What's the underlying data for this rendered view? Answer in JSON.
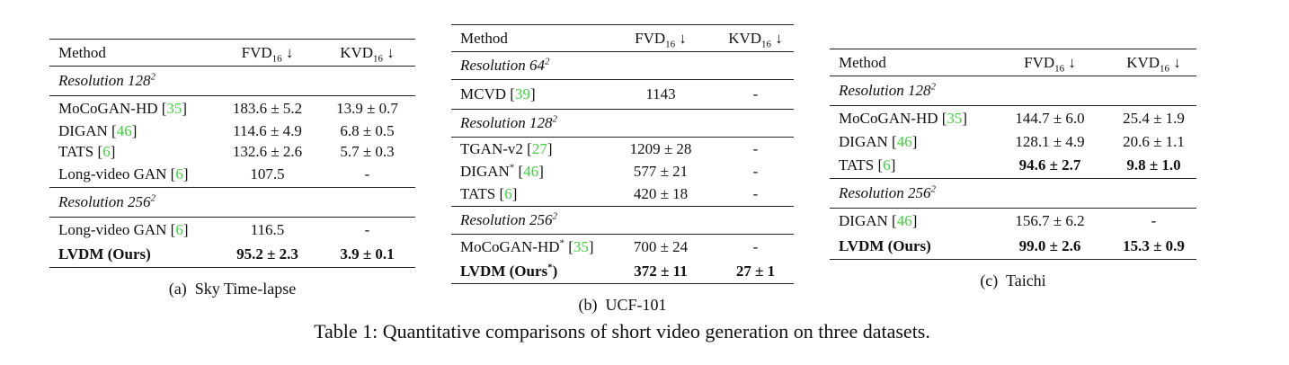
{
  "tables": [
    {
      "caption": "(a)  Sky Time-lapse",
      "columns": [
        {
          "text": "Method"
        },
        {
          "name": "FVD",
          "sub": "16",
          "arrow": "↓"
        },
        {
          "name": "KVD",
          "sub": "16",
          "arrow": "↓"
        }
      ],
      "groups": [
        {
          "resolution": {
            "text": "Resolution 128",
            "sup": "2"
          },
          "rows": [
            {
              "cells": [
                "MoCoGAN-HD [35]",
                "183.6 ± 5.2",
                "13.9 ± 0.7"
              ],
              "bold": [
                false,
                false,
                false
              ]
            },
            {
              "cells": [
                "DIGAN [46]",
                "114.6 ± 4.9",
                "6.8 ± 0.5"
              ],
              "bold": [
                false,
                false,
                false
              ]
            },
            {
              "cells": [
                "TATS [6]",
                "132.6 ± 2.6",
                "5.7 ± 0.3"
              ],
              "bold": [
                false,
                false,
                false
              ]
            },
            {
              "cells": [
                "Long-video GAN [6]",
                "107.5",
                "-"
              ],
              "bold": [
                false,
                false,
                false
              ]
            }
          ]
        },
        {
          "resolution": {
            "text": "Resolution 256",
            "sup": "2"
          },
          "rows": [
            {
              "cells": [
                "Long-video GAN [6]",
                "116.5",
                "-"
              ],
              "bold": [
                false,
                false,
                false
              ]
            },
            {
              "cells": [
                "LVDM (Ours)",
                "95.2 ± 2.3",
                "3.9 ± 0.1"
              ],
              "bold": [
                true,
                true,
                true
              ]
            }
          ]
        }
      ]
    },
    {
      "caption": "(b)  UCF-101",
      "columns": [
        {
          "text": "Method"
        },
        {
          "name": "FVD",
          "sub": "16",
          "arrow": "↓"
        },
        {
          "name": "KVD",
          "sub": "16",
          "arrow": "↓"
        }
      ],
      "groups": [
        {
          "resolution": {
            "text": "Resolution 64",
            "sup": "2"
          },
          "rows": [
            {
              "cells": [
                "MCVD [39]",
                "1143",
                "-"
              ],
              "bold": [
                false,
                false,
                false
              ]
            }
          ]
        },
        {
          "resolution": {
            "text": "Resolution 128",
            "sup": "2"
          },
          "rows": [
            {
              "cells": [
                "TGAN-v2 [27]",
                "1209 ± 28",
                "-"
              ],
              "bold": [
                false,
                false,
                false
              ]
            },
            {
              "cells": [
                "DIGAN* [46]",
                "577 ± 21",
                "-"
              ],
              "bold": [
                false,
                false,
                false
              ]
            },
            {
              "cells": [
                "TATS [6]",
                "420 ± 18",
                "-"
              ],
              "bold": [
                false,
                false,
                false
              ]
            }
          ]
        },
        {
          "resolution": {
            "text": "Resolution 256",
            "sup": "2"
          },
          "rows": [
            {
              "cells": [
                "MoCoGAN-HD* [35]",
                "700 ± 24",
                "-"
              ],
              "bold": [
                false,
                false,
                false
              ]
            },
            {
              "cells": [
                "LVDM (Ours*)",
                "372 ± 11",
                "27 ± 1"
              ],
              "bold": [
                true,
                true,
                true
              ]
            }
          ]
        }
      ]
    },
    {
      "caption": "(c)  Taichi",
      "columns": [
        {
          "text": "Method"
        },
        {
          "name": "FVD",
          "sub": "16",
          "arrow": "↓"
        },
        {
          "name": "KVD",
          "sub": "16",
          "arrow": "↓"
        }
      ],
      "groups": [
        {
          "resolution": {
            "text": "Resolution 128",
            "sup": "2"
          },
          "rows": [
            {
              "cells": [
                "MoCoGAN-HD [35]",
                "144.7 ± 6.0",
                "25.4 ± 1.9"
              ],
              "bold": [
                false,
                false,
                false
              ]
            },
            {
              "cells": [
                "DIGAN [46]",
                "128.1 ± 4.9",
                "20.6 ± 1.1"
              ],
              "bold": [
                false,
                false,
                false
              ]
            },
            {
              "cells": [
                "TATS [6]",
                "94.6 ± 2.7",
                "9.8 ± 1.0"
              ],
              "bold": [
                false,
                true,
                true
              ]
            }
          ]
        },
        {
          "resolution": {
            "text": "Resolution 256",
            "sup": "2"
          },
          "rows": [
            {
              "cells": [
                "DIGAN [46]",
                "156.7 ± 6.2",
                "-"
              ],
              "bold": [
                false,
                false,
                false
              ]
            },
            {
              "cells": [
                "LVDM (Ours)",
                "99.0 ± 2.6",
                "15.3 ± 0.9"
              ],
              "bold": [
                true,
                true,
                true
              ]
            }
          ]
        }
      ]
    }
  ],
  "caption": "Table 1: Quantitative comparisons of short video generation on three datasets."
}
